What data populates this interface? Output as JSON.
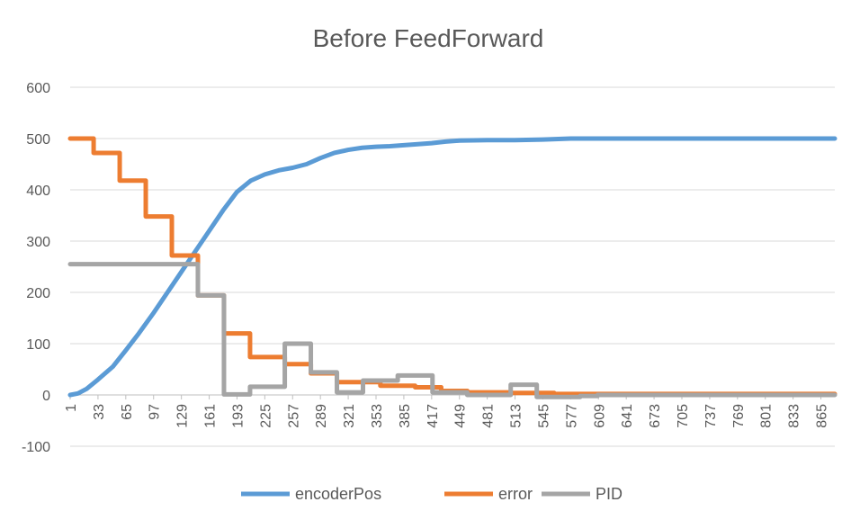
{
  "chart_data": {
    "type": "line",
    "title": "Before FeedForward",
    "xlabel": "",
    "ylabel": "",
    "ylim": [
      -100,
      600
    ],
    "yticks": [
      -100,
      0,
      100,
      200,
      300,
      400,
      500,
      600
    ],
    "xlim": [
      1,
      881
    ],
    "xticks": [
      1,
      33,
      65,
      97,
      129,
      161,
      193,
      225,
      257,
      289,
      321,
      353,
      385,
      417,
      449,
      481,
      513,
      545,
      577,
      609,
      641,
      673,
      705,
      737,
      769,
      801,
      833,
      865
    ],
    "grid": "horizontal",
    "legend_position": "bottom",
    "series": [
      {
        "name": "encoderPos",
        "color": "#5B9BD5",
        "step": false,
        "points": [
          [
            1,
            0
          ],
          [
            10,
            3
          ],
          [
            20,
            12
          ],
          [
            33,
            30
          ],
          [
            50,
            55
          ],
          [
            65,
            87
          ],
          [
            80,
            120
          ],
          [
            97,
            160
          ],
          [
            113,
            200
          ],
          [
            129,
            240
          ],
          [
            145,
            280
          ],
          [
            161,
            320
          ],
          [
            177,
            360
          ],
          [
            193,
            396
          ],
          [
            209,
            418
          ],
          [
            225,
            430
          ],
          [
            241,
            438
          ],
          [
            257,
            443
          ],
          [
            273,
            450
          ],
          [
            289,
            462
          ],
          [
            305,
            472
          ],
          [
            321,
            478
          ],
          [
            337,
            482
          ],
          [
            353,
            484
          ],
          [
            369,
            485
          ],
          [
            385,
            487
          ],
          [
            401,
            489
          ],
          [
            417,
            491
          ],
          [
            433,
            494
          ],
          [
            449,
            496
          ],
          [
            481,
            497
          ],
          [
            513,
            497
          ],
          [
            545,
            498
          ],
          [
            577,
            500
          ],
          [
            881,
            500
          ]
        ]
      },
      {
        "name": "error",
        "color": "#ED7D31",
        "step": true,
        "points": [
          [
            1,
            500
          ],
          [
            28,
            472
          ],
          [
            58,
            418
          ],
          [
            88,
            348
          ],
          [
            118,
            272
          ],
          [
            148,
            194
          ],
          [
            178,
            120
          ],
          [
            208,
            74
          ],
          [
            248,
            60
          ],
          [
            278,
            42
          ],
          [
            308,
            25
          ],
          [
            358,
            18
          ],
          [
            398,
            15
          ],
          [
            428,
            8
          ],
          [
            458,
            5
          ],
          [
            508,
            4
          ],
          [
            558,
            2
          ],
          [
            881,
            2
          ]
        ]
      },
      {
        "name": "PID",
        "color": "#A5A5A5",
        "step": true,
        "points": [
          [
            1,
            255
          ],
          [
            148,
            194
          ],
          [
            178,
            1
          ],
          [
            208,
            16
          ],
          [
            248,
            100
          ],
          [
            278,
            44
          ],
          [
            308,
            5
          ],
          [
            338,
            28
          ],
          [
            378,
            38
          ],
          [
            418,
            5
          ],
          [
            458,
            0
          ],
          [
            508,
            20
          ],
          [
            538,
            -4
          ],
          [
            588,
            -2
          ],
          [
            608,
            0
          ],
          [
            881,
            0
          ]
        ]
      }
    ]
  }
}
